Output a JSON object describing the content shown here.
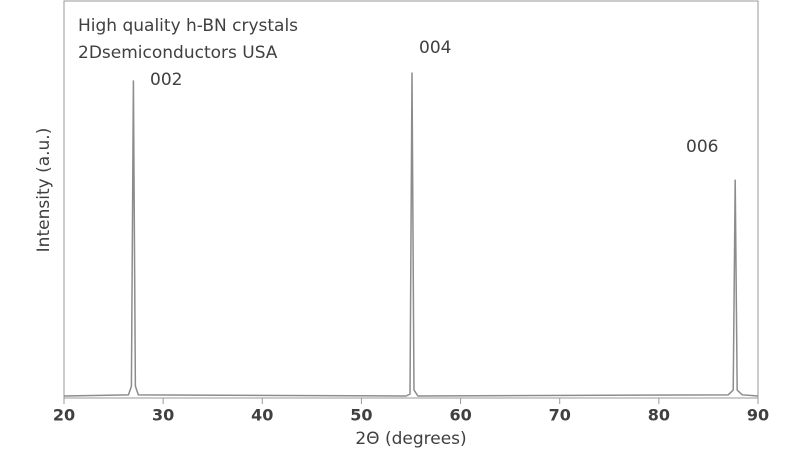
{
  "chart_data": {
    "type": "line",
    "texts": [
      "High quality h-BN crystals",
      "2Dsemiconductors USA"
    ],
    "peak_labels": [
      "002",
      "004",
      "006"
    ],
    "xlabel": "2Θ (degrees)",
    "ylabel": "Intensity (a.u.)",
    "x": [
      20,
      26.5,
      26.8,
      27.0,
      27.2,
      27.5,
      54.5,
      54.9,
      55.1,
      55.3,
      55.7,
      87.0,
      87.5,
      87.7,
      87.9,
      88.4,
      90
    ],
    "series": [
      {
        "color": "#8c8c8c",
        "values": [
          0.5,
          0.8,
          3,
          80,
          3,
          0.8,
          0.5,
          1,
          82,
          2,
          0.5,
          0.8,
          2,
          55,
          2,
          0.8,
          0.5
        ]
      }
    ],
    "xlim": [
      20,
      90
    ],
    "xticks": [
      20,
      30,
      40,
      50,
      60,
      70,
      80,
      90
    ],
    "ylim": [
      0,
      100
    ]
  }
}
